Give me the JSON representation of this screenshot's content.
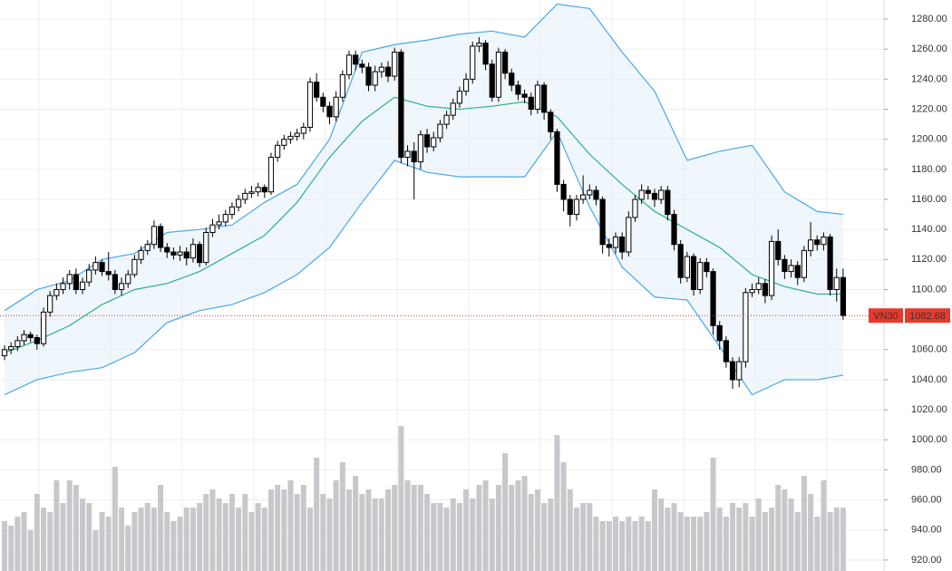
{
  "chart_data": {
    "type": "candlestick",
    "symbol": "VN30",
    "up_color": "#ffffff",
    "down_color": "#000000",
    "outline_color": "#000000",
    "volume_color": "#c8c8cc",
    "band_fill": "#e8f2fb",
    "band_color": "#4aa8e6",
    "middle_color": "#2bb08a",
    "last_color": "#e8392c",
    "grid": true,
    "ylim": [
      912.7,
      1292.7
    ],
    "yticks": [
      {
        "value": 920,
        "label": "920.00"
      },
      {
        "value": 940,
        "label": "940.00"
      },
      {
        "value": 960,
        "label": "960.00"
      },
      {
        "value": 980,
        "label": "980.00"
      },
      {
        "value": 1000,
        "label": "1000.00"
      },
      {
        "value": 1020,
        "label": "1020.00"
      },
      {
        "value": 1040,
        "label": "1040.00"
      },
      {
        "value": 1060,
        "label": "1060.00"
      },
      {
        "value": 1080,
        "label": "1080.00"
      },
      {
        "value": 1100,
        "label": "1100.00"
      },
      {
        "value": 1120,
        "label": "1120.00"
      },
      {
        "value": 1140,
        "label": "1140.00"
      },
      {
        "value": 1160,
        "label": "1160.00"
      },
      {
        "value": 1180,
        "label": "1180.00"
      },
      {
        "value": 1200,
        "label": "1200.00"
      },
      {
        "value": 1220,
        "label": "1220.00"
      },
      {
        "value": 1240,
        "label": "1240.00"
      },
      {
        "value": 1260,
        "label": "1260.00"
      },
      {
        "value": 1280,
        "label": "1280.00"
      }
    ],
    "last_price": 1082.68,
    "open": [
      1056,
      1060,
      1062,
      1066,
      1070,
      1068,
      1064,
      1085,
      1096,
      1100,
      1104,
      1110,
      1100,
      1105,
      1113,
      1118,
      1112,
      1110,
      1100,
      1104,
      1110,
      1120,
      1126,
      1130,
      1142,
      1128,
      1125,
      1123,
      1125,
      1121,
      1130,
      1118,
      1138,
      1143,
      1145,
      1150,
      1155,
      1160,
      1164,
      1165,
      1168,
      1165,
      1188,
      1196,
      1200,
      1202,
      1204,
      1208,
      1238,
      1228,
      1222,
      1215,
      1228,
      1243,
      1256,
      1250,
      1248,
      1236,
      1245,
      1248,
      1242,
      1258,
      1188,
      1192,
      1185,
      1203,
      1195,
      1201,
      1210,
      1216,
      1224,
      1232,
      1240,
      1262,
      1264,
      1250,
      1228,
      1258,
      1244,
      1236,
      1230,
      1228,
      1220,
      1236,
      1218,
      1205,
      1170,
      1160,
      1150,
      1160,
      1163,
      1166,
      1160,
      1130,
      1128,
      1135,
      1125,
      1148,
      1160,
      1166,
      1164,
      1160,
      1166,
      1150,
      1130,
      1108,
      1122,
      1100,
      1118,
      1112,
      1076,
      1066,
      1052,
      1040,
      1052,
      1098,
      1100,
      1104,
      1096,
      1132,
      1120,
      1112,
      1116,
      1108,
      1126,
      1133,
      1130,
      1135,
      1100,
      1108
    ],
    "high": [
      1063,
      1065,
      1069,
      1073,
      1072,
      1070,
      1088,
      1099,
      1104,
      1108,
      1113,
      1114,
      1108,
      1117,
      1122,
      1120,
      1125,
      1113,
      1108,
      1113,
      1123,
      1129,
      1133,
      1146,
      1144,
      1131,
      1128,
      1129,
      1128,
      1134,
      1132,
      1141,
      1147,
      1150,
      1153,
      1158,
      1163,
      1167,
      1169,
      1171,
      1170,
      1191,
      1199,
      1203,
      1205,
      1207,
      1211,
      1241,
      1244,
      1231,
      1225,
      1232,
      1246,
      1259,
      1259,
      1253,
      1251,
      1249,
      1251,
      1252,
      1261,
      1260,
      1196,
      1198,
      1206,
      1207,
      1205,
      1213,
      1219,
      1227,
      1235,
      1244,
      1265,
      1268,
      1266,
      1253,
      1261,
      1260,
      1247,
      1239,
      1233,
      1231,
      1239,
      1238,
      1220,
      1207,
      1173,
      1163,
      1163,
      1176,
      1170,
      1169,
      1162,
      1134,
      1138,
      1138,
      1152,
      1163,
      1170,
      1169,
      1167,
      1169,
      1169,
      1153,
      1133,
      1125,
      1124,
      1121,
      1121,
      1114,
      1079,
      1069,
      1055,
      1055,
      1101,
      1104,
      1108,
      1107,
      1136,
      1140,
      1123,
      1120,
      1119,
      1129,
      1145,
      1136,
      1138,
      1137,
      1114,
      1114
    ],
    "low": [
      1053,
      1057,
      1059,
      1063,
      1065,
      1060,
      1062,
      1082,
      1093,
      1097,
      1100,
      1097,
      1097,
      1102,
      1110,
      1109,
      1106,
      1097,
      1096,
      1101,
      1108,
      1117,
      1123,
      1127,
      1125,
      1121,
      1120,
      1119,
      1116,
      1118,
      1115,
      1116,
      1135,
      1140,
      1142,
      1147,
      1152,
      1157,
      1161,
      1162,
      1161,
      1163,
      1185,
      1193,
      1197,
      1199,
      1200,
      1205,
      1225,
      1218,
      1210,
      1212,
      1225,
      1240,
      1246,
      1244,
      1232,
      1232,
      1241,
      1238,
      1239,
      1184,
      1182,
      1160,
      1180,
      1191,
      1192,
      1198,
      1207,
      1213,
      1221,
      1229,
      1237,
      1258,
      1246,
      1225,
      1225,
      1240,
      1232,
      1226,
      1224,
      1216,
      1217,
      1213,
      1200,
      1165,
      1152,
      1142,
      1146,
      1157,
      1160,
      1156,
      1124,
      1122,
      1124,
      1120,
      1122,
      1145,
      1157,
      1160,
      1155,
      1157,
      1146,
      1126,
      1104,
      1105,
      1096,
      1097,
      1108,
      1070,
      1060,
      1048,
      1034,
      1035,
      1048,
      1095,
      1097,
      1091,
      1093,
      1116,
      1107,
      1108,
      1103,
      1105,
      1122,
      1126,
      1126,
      1096,
      1092,
      1080
    ],
    "close": [
      1060,
      1062,
      1066,
      1070,
      1068,
      1064,
      1085,
      1096,
      1100,
      1104,
      1110,
      1100,
      1105,
      1113,
      1118,
      1112,
      1110,
      1100,
      1104,
      1110,
      1120,
      1126,
      1130,
      1142,
      1128,
      1125,
      1123,
      1125,
      1121,
      1130,
      1118,
      1138,
      1143,
      1145,
      1150,
      1155,
      1160,
      1164,
      1165,
      1168,
      1165,
      1188,
      1196,
      1200,
      1202,
      1204,
      1208,
      1238,
      1228,
      1222,
      1215,
      1228,
      1243,
      1256,
      1250,
      1248,
      1236,
      1245,
      1248,
      1242,
      1258,
      1188,
      1192,
      1185,
      1203,
      1195,
      1201,
      1210,
      1216,
      1224,
      1232,
      1240,
      1262,
      1264,
      1250,
      1228,
      1258,
      1244,
      1236,
      1230,
      1228,
      1220,
      1236,
      1218,
      1205,
      1170,
      1160,
      1150,
      1160,
      1163,
      1166,
      1160,
      1130,
      1128,
      1135,
      1125,
      1148,
      1160,
      1166,
      1164,
      1160,
      1166,
      1150,
      1130,
      1108,
      1122,
      1100,
      1118,
      1112,
      1076,
      1066,
      1052,
      1040,
      1052,
      1098,
      1100,
      1104,
      1096,
      1132,
      1120,
      1112,
      1116,
      1108,
      1126,
      1133,
      1130,
      1135,
      1100,
      1108,
      1082.68
    ],
    "volume_lim": [
      0,
      200
    ],
    "volume": [
      55,
      50,
      60,
      65,
      45,
      85,
      70,
      65,
      100,
      75,
      100,
      95,
      80,
      75,
      45,
      65,
      60,
      115,
      70,
      50,
      65,
      70,
      75,
      70,
      95,
      65,
      55,
      60,
      70,
      70,
      75,
      85,
      90,
      80,
      75,
      85,
      70,
      85,
      65,
      75,
      70,
      90,
      95,
      90,
      100,
      85,
      95,
      70,
      125,
      85,
      80,
      100,
      120,
      90,
      105,
      85,
      90,
      80,
      80,
      90,
      95,
      160,
      100,
      95,
      95,
      85,
      75,
      75,
      70,
      80,
      75,
      90,
      80,
      95,
      100,
      80,
      95,
      130,
      95,
      100,
      105,
      85,
      90,
      75,
      80,
      150,
      120,
      90,
      70,
      75,
      75,
      60,
      55,
      55,
      60,
      55,
      60,
      55,
      60,
      55,
      90,
      80,
      70,
      75,
      65,
      60,
      60,
      60,
      65,
      125,
      70,
      60,
      75,
      70,
      75,
      60,
      80,
      65,
      70,
      95,
      90,
      80,
      65,
      105,
      85,
      60,
      100,
      65,
      70,
      70
    ],
    "band_x": [
      0,
      5,
      10,
      15,
      20,
      25,
      30,
      35,
      40,
      45,
      50,
      55,
      60,
      65,
      70,
      75,
      80,
      85,
      90,
      95,
      100,
      105,
      110,
      115,
      120,
      125,
      129
    ],
    "band_upper": [
      1086,
      1100,
      1106,
      1120,
      1124,
      1138,
      1140,
      1143,
      1158,
      1170,
      1200,
      1258,
      1263,
      1266,
      1270,
      1272,
      1268,
      1290,
      1287,
      1258,
      1232,
      1186,
      1192,
      1196,
      1165,
      1152,
      1150
    ],
    "band_middle": [
      1058,
      1066,
      1076,
      1090,
      1100,
      1104,
      1112,
      1124,
      1136,
      1158,
      1188,
      1212,
      1228,
      1222,
      1220,
      1222,
      1225,
      1215,
      1190,
      1170,
      1152,
      1140,
      1128,
      1110,
      1102,
      1097,
      1097
    ],
    "band_lower": [
      1030,
      1040,
      1045,
      1048,
      1058,
      1078,
      1086,
      1090,
      1098,
      1110,
      1128,
      1158,
      1186,
      1178,
      1175,
      1175,
      1175,
      1205,
      1155,
      1115,
      1095,
      1093,
      1062,
      1030,
      1040,
      1040,
      1043
    ]
  }
}
